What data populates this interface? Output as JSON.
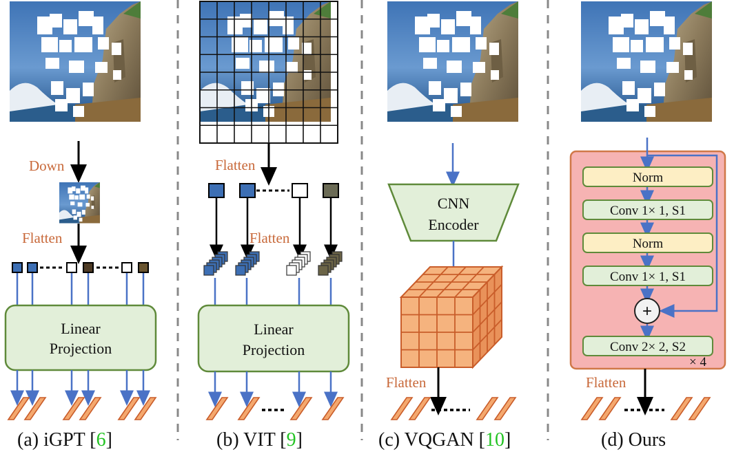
{
  "panels": {
    "a": {
      "down_label": "Down",
      "flatten_label": "Flatten",
      "box_line1": "Linear",
      "box_line2": "Projection",
      "caption": "(a) iGPT [",
      "ref": "6",
      "caption_end": "]"
    },
    "b": {
      "flatten_top": "Flatten",
      "flatten_mid": "Flatten",
      "box_line1": "Linear",
      "box_line2": "Projection",
      "caption": "(b) VIT [",
      "ref": "9",
      "caption_end": "]"
    },
    "c": {
      "encoder_line1": "CNN",
      "encoder_line2": "Encoder",
      "flatten_label": "Flatten",
      "caption": "(c) VQGAN [",
      "ref": "10",
      "caption_end": "]"
    },
    "d": {
      "norm1": "Norm",
      "conv1": "Conv 1× 1, S1",
      "norm2": "Norm",
      "conv2": "Conv 1× 1, S1",
      "plus": "+",
      "conv3": "Conv 2× 2, S2",
      "repeat": "× 4",
      "flatten_label": "Flatten",
      "caption": "(d) Ours"
    }
  },
  "colors": {
    "orange_text": "#c8693a",
    "blue_arrow": "#4a72c6",
    "green_box_fill": "#e2efd9",
    "green_box_stroke": "#5f8a3a",
    "pink_block_fill": "#f6b3b3",
    "pink_block_stroke": "#d07848",
    "norm_fill": "#fdeec4",
    "token_fill": "#f4a86e",
    "token_stroke": "#c95d2a",
    "cube_fill": "#f5b37e",
    "ref_green": "#22c322"
  }
}
